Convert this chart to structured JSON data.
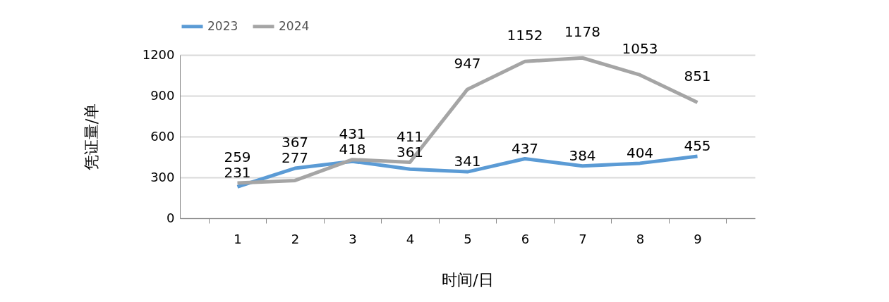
{
  "chart_data": {
    "type": "line",
    "xlabel": "时间/日",
    "ylabel": "凭证量/单",
    "categories": [
      "1",
      "2",
      "3",
      "4",
      "5",
      "6",
      "7",
      "8",
      "9"
    ],
    "series": [
      {
        "name": "2023",
        "color": "#5b9bd5",
        "values": [
          231,
          367,
          418,
          361,
          341,
          437,
          384,
          404,
          455
        ]
      },
      {
        "name": "2024",
        "color": "#a5a5a5",
        "values": [
          259,
          277,
          431,
          411,
          947,
          1152,
          1178,
          1053,
          851
        ]
      }
    ],
    "ylim": [
      0,
      1200
    ],
    "yticks": [
      0,
      300,
      600,
      900,
      1200
    ],
    "grid": "y",
    "legend": "top",
    "data_labels": true
  }
}
